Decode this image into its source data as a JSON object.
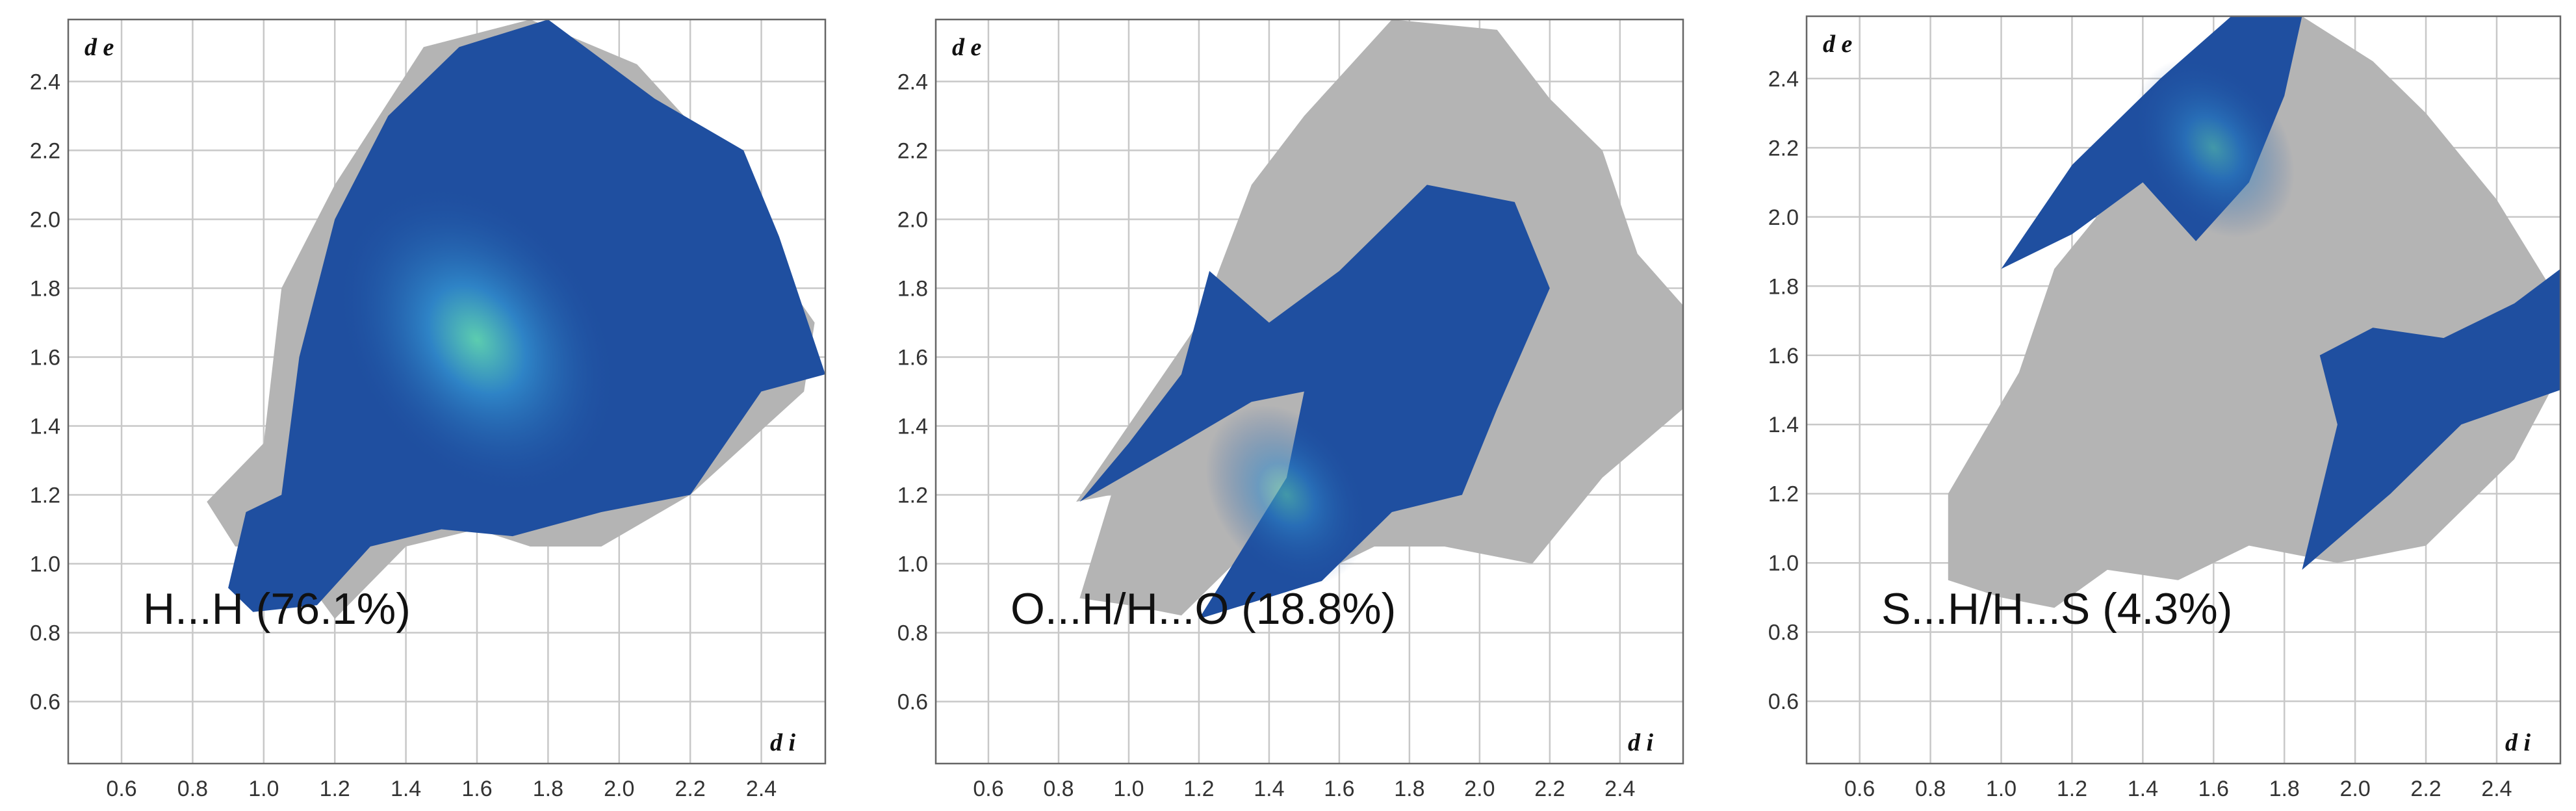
{
  "chart_data": [
    {
      "type": "scatter",
      "panel_label": "H...H (76.1%)",
      "xlabel": "d i",
      "ylabel": "d e",
      "xticks": [
        "0.6",
        "0.8",
        "1.0",
        "1.2",
        "1.4",
        "1.6",
        "1.8",
        "2.0",
        "2.2",
        "2.4"
      ],
      "yticks": [
        "0.6",
        "0.8",
        "1.0",
        "1.2",
        "1.4",
        "1.6",
        "1.8",
        "2.0",
        "2.2",
        "2.4"
      ],
      "xlim": [
        0.45,
        2.58
      ],
      "ylim": [
        0.42,
        2.58
      ],
      "full_fingerprint_region": [
        [
          0.84,
          1.18
        ],
        [
          1.0,
          1.35
        ],
        [
          1.05,
          1.8
        ],
        [
          1.2,
          2.1
        ],
        [
          1.45,
          2.5
        ],
        [
          1.75,
          2.58
        ],
        [
          2.05,
          2.45
        ],
        [
          2.2,
          2.28
        ],
        [
          2.38,
          1.95
        ],
        [
          2.55,
          1.7
        ],
        [
          2.52,
          1.5
        ],
        [
          2.2,
          1.2
        ],
        [
          1.95,
          1.05
        ],
        [
          1.75,
          1.05
        ],
        [
          1.6,
          1.1
        ],
        [
          1.4,
          1.05
        ],
        [
          1.2,
          0.84
        ],
        [
          1.05,
          1.05
        ],
        [
          0.92,
          1.05
        ]
      ],
      "highlighted_region": [
        [
          0.9,
          0.93
        ],
        [
          0.95,
          1.15
        ],
        [
          1.05,
          1.2
        ],
        [
          1.1,
          1.6
        ],
        [
          1.2,
          2.0
        ],
        [
          1.35,
          2.3
        ],
        [
          1.55,
          2.5
        ],
        [
          1.8,
          2.58
        ],
        [
          2.1,
          2.35
        ],
        [
          2.35,
          2.2
        ],
        [
          2.45,
          1.95
        ],
        [
          2.58,
          1.55
        ],
        [
          2.4,
          1.5
        ],
        [
          2.2,
          1.2
        ],
        [
          1.95,
          1.15
        ],
        [
          1.7,
          1.08
        ],
        [
          1.5,
          1.1
        ],
        [
          1.3,
          1.05
        ],
        [
          1.15,
          0.88
        ],
        [
          0.97,
          0.86
        ]
      ],
      "density_peak": {
        "di": 1.6,
        "de": 1.65
      },
      "colors": {
        "inactive": "#b4b4b4",
        "low": "#1f4fa0",
        "mid": "#2f86c8",
        "high": "#5fd3b0"
      }
    },
    {
      "type": "scatter",
      "panel_label": "O...H/H...O (18.8%)",
      "xlabel": "d i",
      "ylabel": "d e",
      "xticks": [
        "0.6",
        "0.8",
        "1.0",
        "1.2",
        "1.4",
        "1.6",
        "1.8",
        "2.0",
        "2.2",
        "2.4"
      ],
      "yticks": [
        "0.6",
        "0.8",
        "1.0",
        "1.2",
        "1.4",
        "1.6",
        "1.8",
        "2.0",
        "2.2",
        "2.4"
      ],
      "xlim": [
        0.45,
        2.58
      ],
      "ylim": [
        0.42,
        2.58
      ],
      "full_fingerprint_region": [
        [
          0.86,
          0.9
        ],
        [
          0.95,
          1.2
        ],
        [
          0.85,
          1.18
        ],
        [
          1.2,
          1.7
        ],
        [
          1.35,
          2.1
        ],
        [
          1.5,
          2.3
        ],
        [
          1.75,
          2.58
        ],
        [
          2.05,
          2.55
        ],
        [
          2.2,
          2.35
        ],
        [
          2.35,
          2.2
        ],
        [
          2.45,
          1.9
        ],
        [
          2.58,
          1.75
        ],
        [
          2.58,
          1.45
        ],
        [
          2.35,
          1.25
        ],
        [
          2.15,
          1.0
        ],
        [
          1.9,
          1.05
        ],
        [
          1.7,
          1.05
        ],
        [
          1.5,
          0.95
        ],
        [
          1.3,
          1.0
        ],
        [
          1.15,
          0.85
        ],
        [
          1.0,
          0.88
        ]
      ],
      "highlighted_region": [
        [
          0.86,
          1.18
        ],
        [
          1.0,
          1.35
        ],
        [
          1.15,
          1.55
        ],
        [
          1.23,
          1.85
        ],
        [
          1.4,
          1.7
        ],
        [
          1.6,
          1.85
        ],
        [
          1.85,
          2.1
        ],
        [
          2.1,
          2.05
        ],
        [
          2.2,
          1.8
        ],
        [
          2.05,
          1.45
        ],
        [
          1.95,
          1.2
        ],
        [
          1.75,
          1.15
        ],
        [
          1.55,
          0.95
        ],
        [
          1.2,
          0.84
        ],
        [
          1.45,
          1.25
        ],
        [
          1.5,
          1.5
        ],
        [
          1.35,
          1.47
        ],
        [
          1.15,
          1.35
        ]
      ],
      "density_peak": {
        "di": 1.45,
        "de": 1.2
      },
      "colors": {
        "inactive": "#b4b4b4",
        "low": "#1f4fa0",
        "mid": "#2f86c8",
        "high": "#5fd3b0"
      }
    },
    {
      "type": "scatter",
      "panel_label": "S...H/H...S (4.3%)",
      "xlabel": "d i",
      "ylabel": "d e",
      "xticks": [
        "0.6",
        "0.8",
        "1.0",
        "1.2",
        "1.4",
        "1.6",
        "1.8",
        "2.0",
        "2.2",
        "2.4"
      ],
      "yticks": [
        "0.6",
        "0.8",
        "1.0",
        "1.2",
        "1.4",
        "1.6",
        "1.8",
        "2.0",
        "2.2",
        "2.4"
      ],
      "xlim": [
        0.45,
        2.58
      ],
      "ylim": [
        0.42,
        2.58
      ],
      "full_fingerprint_region": [
        [
          0.85,
          0.95
        ],
        [
          0.85,
          1.2
        ],
        [
          1.05,
          1.55
        ],
        [
          1.15,
          1.85
        ],
        [
          1.35,
          2.1
        ],
        [
          1.55,
          2.4
        ],
        [
          1.85,
          2.58
        ],
        [
          2.05,
          2.45
        ],
        [
          2.2,
          2.3
        ],
        [
          2.4,
          2.05
        ],
        [
          2.55,
          1.8
        ],
        [
          2.58,
          1.55
        ],
        [
          2.45,
          1.3
        ],
        [
          2.2,
          1.05
        ],
        [
          1.95,
          1.0
        ],
        [
          1.7,
          1.05
        ],
        [
          1.5,
          0.95
        ],
        [
          1.3,
          0.98
        ],
        [
          1.15,
          0.87
        ],
        [
          1.0,
          0.9
        ]
      ],
      "highlighted_regions": [
        [
          [
            1.0,
            1.85
          ],
          [
            1.2,
            2.15
          ],
          [
            1.45,
            2.4
          ],
          [
            1.65,
            2.58
          ],
          [
            1.85,
            2.58
          ],
          [
            1.8,
            2.35
          ],
          [
            1.7,
            2.1
          ],
          [
            1.55,
            1.93
          ],
          [
            1.4,
            2.1
          ],
          [
            1.2,
            1.95
          ]
        ],
        [
          [
            1.85,
            0.98
          ],
          [
            2.1,
            1.2
          ],
          [
            2.3,
            1.4
          ],
          [
            2.58,
            1.5
          ],
          [
            2.58,
            1.85
          ],
          [
            2.45,
            1.75
          ],
          [
            2.25,
            1.65
          ],
          [
            2.05,
            1.68
          ],
          [
            1.9,
            1.6
          ],
          [
            1.95,
            1.4
          ]
        ]
      ],
      "density_peak": {
        "di": 1.6,
        "de": 2.2
      },
      "colors": {
        "inactive": "#b4b4b4",
        "low": "#1f4fa0",
        "mid": "#2f86c8",
        "high": "#5fd3b0"
      }
    }
  ]
}
